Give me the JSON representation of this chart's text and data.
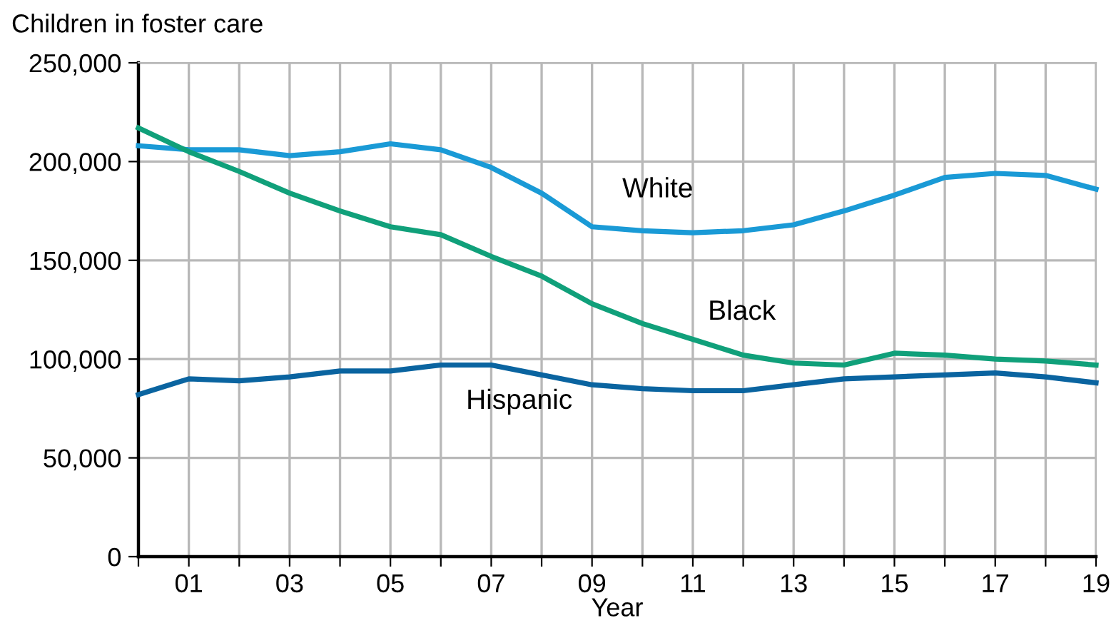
{
  "chart_data": {
    "type": "line",
    "ylabel": "Children in foster care",
    "xlabel": "Year",
    "x": [
      2000,
      2001,
      2002,
      2003,
      2004,
      2005,
      2006,
      2007,
      2008,
      2009,
      2010,
      2011,
      2012,
      2013,
      2014,
      2015,
      2016,
      2017,
      2018,
      2019
    ],
    "series": [
      {
        "name": "White",
        "color": "#1a9ad6",
        "values": [
          208000,
          206000,
          206000,
          203000,
          205000,
          209000,
          206000,
          197000,
          184000,
          167000,
          165000,
          164000,
          165000,
          168000,
          175000,
          183000,
          192000,
          194000,
          193000,
          186000
        ]
      },
      {
        "name": "Black",
        "color": "#10a07a",
        "values": [
          217000,
          205000,
          195000,
          184000,
          175000,
          167000,
          163000,
          152000,
          142000,
          128000,
          118000,
          110000,
          102000,
          98000,
          97000,
          103000,
          102000,
          100000,
          99000,
          97000
        ]
      },
      {
        "name": "Hispanic",
        "color": "#0a64a0",
        "values": [
          82000,
          90000,
          89000,
          91000,
          94000,
          94000,
          97000,
          97000,
          92000,
          87000,
          85000,
          84000,
          84000,
          87000,
          90000,
          91000,
          92000,
          93000,
          91000,
          88000
        ]
      }
    ],
    "xlim": [
      2000,
      2019
    ],
    "xticks": [
      {
        "value": 2000,
        "label": null
      },
      {
        "value": 2001,
        "label": "01"
      },
      {
        "value": 2002,
        "label": null
      },
      {
        "value": 2003,
        "label": "03"
      },
      {
        "value": 2004,
        "label": null
      },
      {
        "value": 2005,
        "label": "05"
      },
      {
        "value": 2006,
        "label": null
      },
      {
        "value": 2007,
        "label": "07"
      },
      {
        "value": 2008,
        "label": null
      },
      {
        "value": 2009,
        "label": "09"
      },
      {
        "value": 2010,
        "label": null
      },
      {
        "value": 2011,
        "label": "11"
      },
      {
        "value": 2012,
        "label": null
      },
      {
        "value": 2013,
        "label": "13"
      },
      {
        "value": 2014,
        "label": null
      },
      {
        "value": 2015,
        "label": "15"
      },
      {
        "value": 2016,
        "label": null
      },
      {
        "value": 2017,
        "label": "17"
      },
      {
        "value": 2018,
        "label": null
      },
      {
        "value": 2019,
        "label": "19"
      }
    ],
    "ylim": [
      0,
      250000
    ],
    "yticks": [
      {
        "value": 0,
        "label": "0"
      },
      {
        "value": 50000,
        "label": "50,000"
      },
      {
        "value": 100000,
        "label": "100,000"
      },
      {
        "value": 150000,
        "label": "150,000"
      },
      {
        "value": 200000,
        "label": "200,000"
      },
      {
        "value": 250000,
        "label": "250,000"
      }
    ],
    "grid": true,
    "legend": false,
    "line_style": "solid",
    "marker": "none"
  }
}
